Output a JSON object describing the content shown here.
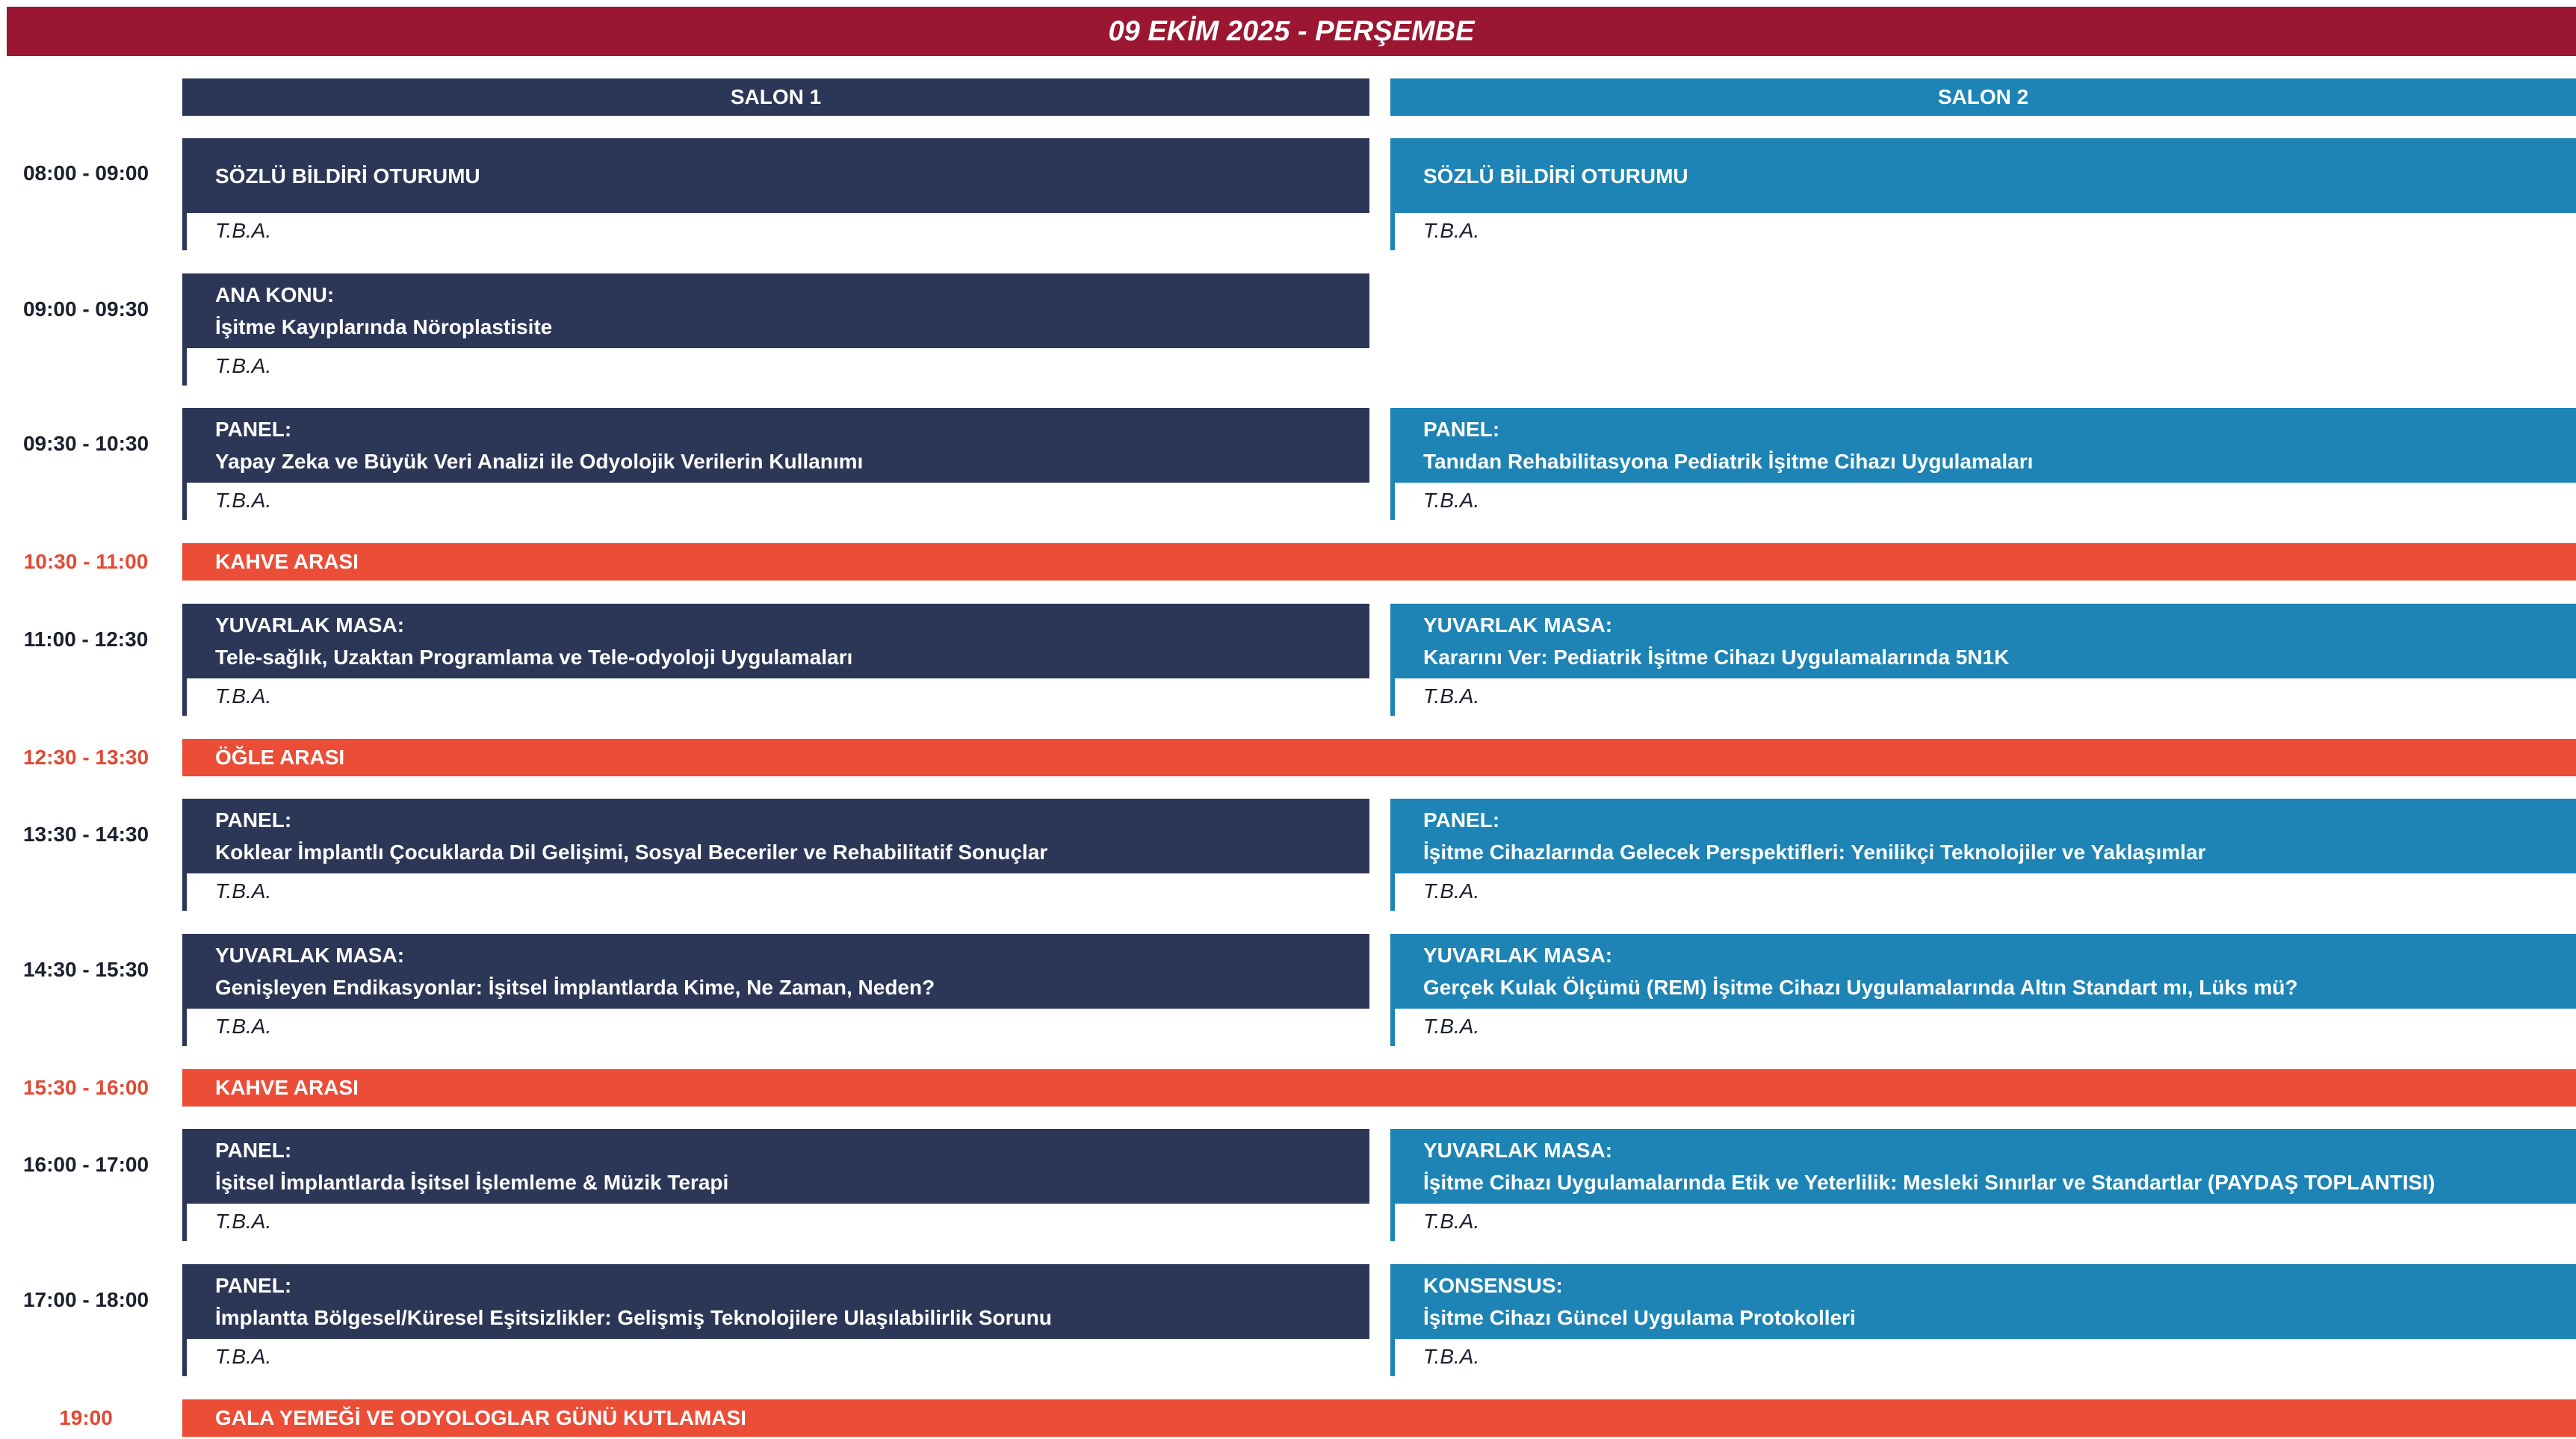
{
  "title": "09 EKİM 2025 - PERŞEMBE",
  "salons": [
    "SALON 1",
    "SALON 2"
  ],
  "colors": {
    "header": "#9b1631",
    "salon1": "#2c3758",
    "salon2": "#1d84b5",
    "break": "#ec4d37"
  },
  "rows": [
    {
      "time": "08:00 - 09:00",
      "s1": {
        "type": "SÖZLÜ BİLDİRİ OTURUMU",
        "topic": "",
        "speaker": "T.B.A."
      },
      "s2": {
        "type": "SÖZLÜ BİLDİRİ OTURUMU",
        "topic": "",
        "speaker": "T.B.A."
      }
    },
    {
      "time": "09:00 - 09:30",
      "s1": {
        "type": "ANA KONU:",
        "topic": "İşitme Kayıplarında Nöroplastisite",
        "speaker": "T.B.A."
      }
    },
    {
      "time": "09:30 - 10:30",
      "s1": {
        "type": "PANEL:",
        "topic": "Yapay Zeka ve Büyük Veri Analizi ile Odyolojik Verilerin Kullanımı",
        "speaker": "T.B.A."
      },
      "s2": {
        "type": "PANEL:",
        "topic": "Tanıdan Rehabilitasyona Pediatrik İşitme Cihazı Uygulamaları",
        "speaker": "T.B.A."
      }
    },
    {
      "time": "10:30 - 11:00",
      "break": "KAHVE ARASI"
    },
    {
      "time": "11:00 - 12:30",
      "s1": {
        "type": "YUVARLAK MASA:",
        "topic": "Tele-sağlık, Uzaktan Programlama ve Tele-odyoloji Uygulamaları",
        "speaker": "T.B.A."
      },
      "s2": {
        "type": "YUVARLAK MASA:",
        "topic": "Kararını Ver: Pediatrik İşitme Cihazı Uygulamalarında 5N1K",
        "speaker": "T.B.A."
      }
    },
    {
      "time": "12:30 - 13:30",
      "break": "ÖĞLE ARASI"
    },
    {
      "time": "13:30 - 14:30",
      "s1": {
        "type": "PANEL:",
        "topic": "Koklear İmplantlı Çocuklarda Dil Gelişimi, Sosyal Beceriler ve Rehabilitatif Sonuçlar",
        "speaker": "T.B.A."
      },
      "s2": {
        "type": "PANEL:",
        "topic": "İşitme Cihazlarında Gelecek Perspektifleri: Yenilikçi Teknolojiler ve Yaklaşımlar",
        "speaker": "T.B.A."
      }
    },
    {
      "time": "14:30 - 15:30",
      "s1": {
        "type": "YUVARLAK MASA:",
        "topic": "Genişleyen Endikasyonlar: İşitsel İmplantlarda Kime, Ne Zaman, Neden?",
        "speaker": "T.B.A."
      },
      "s2": {
        "type": "YUVARLAK MASA:",
        "topic": "Gerçek Kulak Ölçümü (REM) İşitme Cihazı Uygulamalarında Altın Standart mı, Lüks mü?",
        "speaker": "T.B.A."
      }
    },
    {
      "time": "15:30 - 16:00",
      "break": "KAHVE ARASI"
    },
    {
      "time": "16:00 - 17:00",
      "s1": {
        "type": "PANEL:",
        "topic": "İşitsel İmplantlarda İşitsel İşlemleme & Müzik Terapi",
        "speaker": "T.B.A."
      },
      "s2": {
        "type": "YUVARLAK MASA:",
        "topic": "İşitme Cihazı Uygulamalarında Etik ve Yeterlilik: Mesleki Sınırlar ve Standartlar (PAYDAŞ TOPLANTISI)",
        "speaker": "T.B.A."
      }
    },
    {
      "time": "17:00 - 18:00",
      "s1": {
        "type": "PANEL:",
        "topic": "İmplantta Bölgesel/Küresel Eşitsizlikler: Gelişmiş Teknolojilere Ulaşılabilirlik Sorunu",
        "speaker": "T.B.A."
      },
      "s2": {
        "type": "KONSENSUS:",
        "topic": "İşitme Cihazı Güncel Uygulama Protokolleri",
        "speaker": "T.B.A."
      }
    },
    {
      "time": "19:00",
      "break": "GALA YEMEĞİ VE ODYOLOGLAR GÜNÜ KUTLAMASI"
    }
  ]
}
